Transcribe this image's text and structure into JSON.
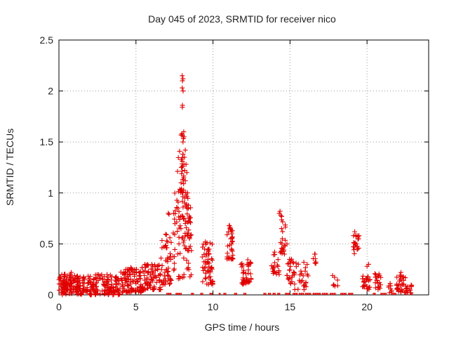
{
  "chart_data": {
    "type": "scatter",
    "title": "Day 045 of 2023, SRMTID for receiver nico",
    "xlabel": "GPS time / hours",
    "ylabel": "SRMTID / TECUs",
    "xlim": [
      0,
      24
    ],
    "ylim": [
      0,
      2.5
    ],
    "x_ticks": [
      0,
      5,
      10,
      15,
      20
    ],
    "x_tick_labels": [
      "0",
      "5",
      "10",
      "15",
      "20"
    ],
    "y_ticks": [
      0,
      0.5,
      1,
      1.5,
      2,
      2.5
    ],
    "y_tick_labels": [
      "0",
      "0.5",
      "1",
      "1.5",
      "2",
      "2.5"
    ],
    "grid": true,
    "marker": "plus",
    "series": [
      {
        "name": "SRMTID",
        "color": "#e00000",
        "clusters": [
          {
            "x_range": [
              0.0,
              4.0
            ],
            "y_range": [
              0.0,
              0.2
            ],
            "count": 260
          },
          {
            "x_range": [
              0.2,
              1.0
            ],
            "y_range": [
              0.05,
              0.23
            ],
            "count": 40
          },
          {
            "x_range": [
              4.0,
              5.5
            ],
            "y_range": [
              0.02,
              0.27
            ],
            "count": 110
          },
          {
            "x_range": [
              5.5,
              6.6
            ],
            "y_range": [
              0.05,
              0.3
            ],
            "count": 70
          },
          {
            "x_range": [
              6.6,
              7.3
            ],
            "y_range": [
              0.1,
              0.6
            ],
            "count": 45
          },
          {
            "x_range": [
              7.4,
              8.6
            ],
            "y_range": [
              0.15,
              1.0
            ],
            "count": 80
          },
          {
            "x_range": [
              7.7,
              8.1
            ],
            "y_range": [
              1.0,
              1.6
            ],
            "count": 25
          },
          {
            "x_range": [
              7.9,
              8.5
            ],
            "y_range": [
              0.55,
              1.3
            ],
            "count": 25
          },
          {
            "x_range": [
              9.3,
              10.0
            ],
            "y_range": [
              0.1,
              0.52
            ],
            "count": 55
          },
          {
            "x_range": [
              10.9,
              11.3
            ],
            "y_range": [
              0.35,
              0.68
            ],
            "count": 30
          },
          {
            "x_range": [
              11.8,
              12.5
            ],
            "y_range": [
              0.1,
              0.35
            ],
            "count": 40
          },
          {
            "x_range": [
              13.8,
              14.3
            ],
            "y_range": [
              0.2,
              0.4
            ],
            "count": 20
          },
          {
            "x_range": [
              14.3,
              14.7
            ],
            "y_range": [
              0.4,
              0.8
            ],
            "count": 20
          },
          {
            "x_range": [
              14.8,
              15.3
            ],
            "y_range": [
              0.1,
              0.35
            ],
            "count": 25
          },
          {
            "x_range": [
              15.3,
              16.2
            ],
            "y_range": [
              0.05,
              0.33
            ],
            "count": 25
          },
          {
            "x_range": [
              16.5,
              16.7
            ],
            "y_range": [
              0.3,
              0.4
            ],
            "count": 6
          },
          {
            "x_range": [
              17.6,
              18.1
            ],
            "y_range": [
              0.08,
              0.2
            ],
            "count": 6
          },
          {
            "x_range": [
              19.1,
              19.5
            ],
            "y_range": [
              0.4,
              0.6
            ],
            "count": 18
          },
          {
            "x_range": [
              19.7,
              20.2
            ],
            "y_range": [
              0.05,
              0.2
            ],
            "count": 25
          },
          {
            "x_range": [
              20.5,
              20.9
            ],
            "y_range": [
              0.05,
              0.22
            ],
            "count": 20
          },
          {
            "x_range": [
              21.4,
              21.6
            ],
            "y_range": [
              0.02,
              0.12
            ],
            "count": 8
          },
          {
            "x_range": [
              21.9,
              22.5
            ],
            "y_range": [
              0.02,
              0.2
            ],
            "count": 30
          },
          {
            "x_range": [
              22.5,
              22.9
            ],
            "y_range": [
              0.02,
              0.1
            ],
            "count": 15
          }
        ],
        "points": [
          [
            8.0,
            2.15
          ],
          [
            8.05,
            2.12
          ],
          [
            8.02,
            2.1
          ],
          [
            8.0,
            2.03
          ],
          [
            8.06,
            2.0
          ],
          [
            8.02,
            1.86
          ],
          [
            8.01,
            1.84
          ],
          [
            8.1,
            1.6
          ],
          [
            7.98,
            1.58
          ],
          [
            8.12,
            1.55
          ],
          [
            8.05,
            1.5
          ],
          [
            8.2,
            1.42
          ],
          [
            8.05,
            1.38
          ],
          [
            8.15,
            1.35
          ],
          [
            8.25,
            1.28
          ],
          [
            8.0,
            1.26
          ],
          [
            8.3,
            1.2
          ],
          [
            8.1,
            1.15
          ],
          [
            8.2,
            1.12
          ],
          [
            8.35,
            1.0
          ],
          [
            8.25,
            0.98
          ],
          [
            8.4,
            0.88
          ],
          [
            8.3,
            0.85
          ],
          [
            8.45,
            0.75
          ],
          [
            8.2,
            0.7
          ],
          [
            7.1,
            0.8
          ],
          [
            7.15,
            0.79
          ],
          [
            7.2,
            0.56
          ],
          [
            7.0,
            0.53
          ],
          [
            6.9,
            0.48
          ],
          [
            9.5,
            0.52
          ],
          [
            9.45,
            0.45
          ],
          [
            9.55,
            0.38
          ],
          [
            11.05,
            0.68
          ],
          [
            11.1,
            0.65
          ],
          [
            11.0,
            0.62
          ],
          [
            11.15,
            0.55
          ],
          [
            11.2,
            0.45
          ],
          [
            14.35,
            0.82
          ],
          [
            14.4,
            0.78
          ],
          [
            14.45,
            0.65
          ],
          [
            14.5,
            0.55
          ],
          [
            14.55,
            0.46
          ],
          [
            14.6,
            0.44
          ],
          [
            14.8,
            0.5
          ],
          [
            14.0,
            0.42
          ],
          [
            16.6,
            0.4
          ],
          [
            19.2,
            0.62
          ],
          [
            19.4,
            0.58
          ],
          [
            19.45,
            0.55
          ],
          [
            19.3,
            0.5
          ],
          [
            20.0,
            0.28
          ],
          [
            20.1,
            0.3
          ],
          [
            22.2,
            0.22
          ],
          [
            18.1,
            0.09
          ],
          [
            12.2,
            0.3
          ],
          [
            12.3,
            0.28
          ],
          [
            15.1,
            0.35
          ],
          [
            15.9,
            0.32
          ]
        ],
        "zero_bins": [
          [
            7.0,
            7.3
          ],
          [
            7.6,
            8.0
          ],
          [
            8.6,
            8.8
          ],
          [
            9.2,
            9.4
          ],
          [
            9.8,
            9.95
          ],
          [
            10.4,
            10.5
          ],
          [
            10.7,
            10.9
          ],
          [
            11.4,
            11.6
          ],
          [
            12.0,
            12.2
          ],
          [
            13.3,
            13.5
          ],
          [
            13.6,
            13.8
          ],
          [
            13.9,
            14.1
          ],
          [
            14.2,
            14.4
          ],
          [
            14.7,
            15.0
          ],
          [
            15.2,
            15.5
          ],
          [
            15.6,
            15.9
          ],
          [
            16.0,
            16.4
          ],
          [
            16.5,
            17.0
          ],
          [
            17.1,
            17.5
          ],
          [
            17.6,
            18.0
          ],
          [
            18.3,
            18.7
          ],
          [
            18.8,
            19.1
          ],
          [
            20.4,
            20.6
          ],
          [
            20.9,
            21.3
          ],
          [
            21.6,
            21.9
          ],
          [
            22.8,
            23.0
          ]
        ]
      }
    ]
  }
}
